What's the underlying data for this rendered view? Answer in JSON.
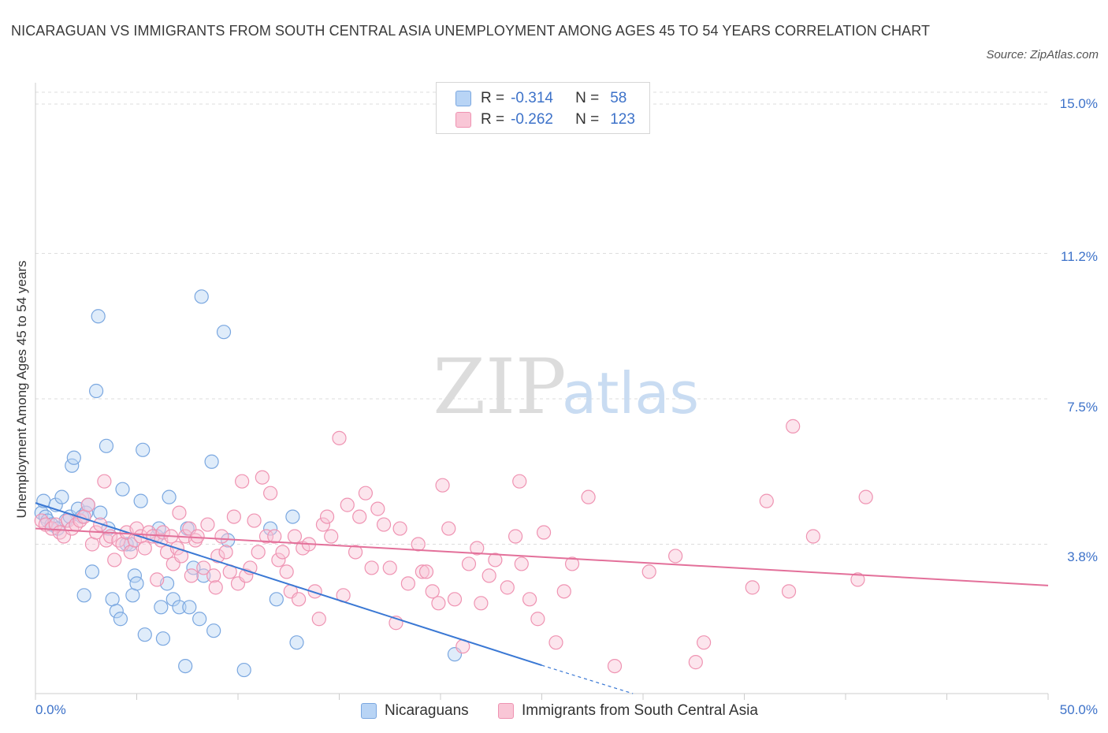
{
  "title": "NICARAGUAN VS IMMIGRANTS FROM SOUTH CENTRAL ASIA UNEMPLOYMENT AMONG AGES 45 TO 54 YEARS CORRELATION CHART",
  "source": "Source: ZipAtlas.com",
  "watermark": {
    "zip": "ZIP",
    "atlas": "atlas"
  },
  "legend": {
    "rows": [
      {
        "r_label": "R =",
        "r_value": "-0.314",
        "n_label": "N =",
        "n_value": "58",
        "color": "#b8d4f5",
        "stroke": "#7aa7e0"
      },
      {
        "r_label": "R =",
        "r_value": "-0.262",
        "n_label": "N =",
        "n_value": "123",
        "color": "#f9c6d6",
        "stroke": "#ef93b2"
      }
    ]
  },
  "chart_data": {
    "type": "scatter",
    "title": "NICARAGUAN VS IMMIGRANTS FROM SOUTH CENTRAL ASIA UNEMPLOYMENT AMONG AGES 45 TO 54 YEARS CORRELATION CHART",
    "xlabel": "",
    "ylabel": "Unemployment Among Ages 45 to 54 years",
    "xlim": [
      0,
      50
    ],
    "ylim": [
      0,
      15.3
    ],
    "x_tick_labels": [
      "0.0%",
      "50.0%"
    ],
    "y_ticks": [
      3.8,
      7.5,
      11.2,
      15.0
    ],
    "y_tick_labels": [
      "3.8%",
      "7.5%",
      "11.2%",
      "15.0%"
    ],
    "grid": true,
    "legend_position": "top-center",
    "series": [
      {
        "name": "Nicaraguans",
        "color": "#7aa7e0",
        "fill": "#b8d4f5",
        "trend": {
          "x0": 0,
          "y0": 4.85,
          "x1": 25,
          "y1": 0.72,
          "dashed_to_x": 29.5,
          "dashed_to_y": 0.0
        },
        "points": [
          [
            0.3,
            4.6
          ],
          [
            0.4,
            4.9
          ],
          [
            0.5,
            4.5
          ],
          [
            0.6,
            4.4
          ],
          [
            0.8,
            4.3
          ],
          [
            1.0,
            4.8
          ],
          [
            1.1,
            4.2
          ],
          [
            1.3,
            5.0
          ],
          [
            1.5,
            4.4
          ],
          [
            1.7,
            4.5
          ],
          [
            1.8,
            5.8
          ],
          [
            1.9,
            6.0
          ],
          [
            2.1,
            4.7
          ],
          [
            2.3,
            4.5
          ],
          [
            2.5,
            4.6
          ],
          [
            2.6,
            4.8
          ],
          [
            2.4,
            2.5
          ],
          [
            2.8,
            3.1
          ],
          [
            3.0,
            7.7
          ],
          [
            3.1,
            9.6
          ],
          [
            3.2,
            4.6
          ],
          [
            3.5,
            6.3
          ],
          [
            3.6,
            4.2
          ],
          [
            3.8,
            2.4
          ],
          [
            4.0,
            2.1
          ],
          [
            4.2,
            1.9
          ],
          [
            4.3,
            5.2
          ],
          [
            4.5,
            3.8
          ],
          [
            4.7,
            3.8
          ],
          [
            4.8,
            2.5
          ],
          [
            4.9,
            3.0
          ],
          [
            5.0,
            2.8
          ],
          [
            5.2,
            4.9
          ],
          [
            5.3,
            6.2
          ],
          [
            5.4,
            1.5
          ],
          [
            6.0,
            4.0
          ],
          [
            6.1,
            4.2
          ],
          [
            6.2,
            2.2
          ],
          [
            6.3,
            1.4
          ],
          [
            6.5,
            2.8
          ],
          [
            6.6,
            5.0
          ],
          [
            6.8,
            2.4
          ],
          [
            7.1,
            2.2
          ],
          [
            7.4,
            0.7
          ],
          [
            7.5,
            4.2
          ],
          [
            7.6,
            2.2
          ],
          [
            7.8,
            3.2
          ],
          [
            8.1,
            1.9
          ],
          [
            8.2,
            10.1
          ],
          [
            8.3,
            3.0
          ],
          [
            8.7,
            5.9
          ],
          [
            8.8,
            1.6
          ],
          [
            9.3,
            9.2
          ],
          [
            9.5,
            3.9
          ],
          [
            10.3,
            0.6
          ],
          [
            11.6,
            4.2
          ],
          [
            11.9,
            2.4
          ],
          [
            12.7,
            4.5
          ],
          [
            12.9,
            1.3
          ],
          [
            20.7,
            1.0
          ]
        ]
      },
      {
        "name": "Immigrants from South Central Asia",
        "color": "#ef93b2",
        "fill": "#f9c6d6",
        "trend": {
          "x0": 0,
          "y0": 4.2,
          "x1": 50,
          "y1": 2.75
        },
        "points": [
          [
            0.3,
            4.4
          ],
          [
            0.5,
            4.3
          ],
          [
            0.8,
            4.2
          ],
          [
            1.0,
            4.3
          ],
          [
            1.2,
            4.1
          ],
          [
            1.4,
            4.0
          ],
          [
            1.6,
            4.4
          ],
          [
            1.8,
            4.2
          ],
          [
            2.0,
            4.3
          ],
          [
            2.2,
            4.4
          ],
          [
            2.4,
            4.5
          ],
          [
            2.6,
            4.8
          ],
          [
            2.8,
            3.8
          ],
          [
            3.0,
            4.1
          ],
          [
            3.2,
            4.3
          ],
          [
            3.4,
            5.4
          ],
          [
            3.5,
            3.9
          ],
          [
            3.7,
            4.0
          ],
          [
            3.9,
            3.4
          ],
          [
            4.1,
            3.9
          ],
          [
            4.3,
            3.8
          ],
          [
            4.5,
            4.1
          ],
          [
            4.7,
            3.6
          ],
          [
            4.9,
            3.9
          ],
          [
            5.0,
            4.2
          ],
          [
            5.2,
            4.0
          ],
          [
            5.4,
            3.7
          ],
          [
            5.6,
            4.1
          ],
          [
            5.8,
            4.0
          ],
          [
            6.0,
            2.9
          ],
          [
            6.2,
            3.9
          ],
          [
            6.3,
            4.1
          ],
          [
            6.5,
            3.6
          ],
          [
            6.7,
            4.0
          ],
          [
            6.8,
            3.3
          ],
          [
            7.0,
            3.7
          ],
          [
            7.1,
            4.6
          ],
          [
            7.2,
            3.5
          ],
          [
            7.4,
            4.0
          ],
          [
            7.6,
            4.2
          ],
          [
            7.7,
            3.0
          ],
          [
            7.9,
            3.9
          ],
          [
            8.0,
            4.0
          ],
          [
            8.3,
            3.2
          ],
          [
            8.5,
            4.3
          ],
          [
            8.8,
            3.0
          ],
          [
            8.9,
            2.7
          ],
          [
            9.0,
            3.5
          ],
          [
            9.2,
            4.0
          ],
          [
            9.4,
            3.6
          ],
          [
            9.6,
            3.1
          ],
          [
            9.8,
            4.5
          ],
          [
            10.0,
            2.8
          ],
          [
            10.2,
            5.4
          ],
          [
            10.4,
            3.0
          ],
          [
            10.6,
            3.2
          ],
          [
            10.8,
            4.4
          ],
          [
            11.0,
            3.6
          ],
          [
            11.2,
            5.5
          ],
          [
            11.4,
            4.0
          ],
          [
            11.6,
            5.1
          ],
          [
            11.8,
            4.0
          ],
          [
            12.0,
            3.4
          ],
          [
            12.2,
            3.6
          ],
          [
            12.4,
            3.1
          ],
          [
            12.6,
            2.6
          ],
          [
            12.8,
            4.0
          ],
          [
            13.0,
            2.4
          ],
          [
            13.2,
            3.7
          ],
          [
            13.5,
            3.8
          ],
          [
            13.8,
            2.6
          ],
          [
            14.0,
            1.9
          ],
          [
            14.2,
            4.3
          ],
          [
            14.4,
            4.5
          ],
          [
            14.6,
            4.0
          ],
          [
            15.0,
            6.5
          ],
          [
            15.2,
            2.5
          ],
          [
            15.4,
            4.8
          ],
          [
            15.8,
            3.6
          ],
          [
            16.0,
            4.5
          ],
          [
            16.3,
            5.1
          ],
          [
            16.6,
            3.2
          ],
          [
            16.9,
            4.7
          ],
          [
            17.2,
            4.3
          ],
          [
            17.5,
            3.2
          ],
          [
            17.8,
            1.8
          ],
          [
            18.0,
            4.2
          ],
          [
            18.4,
            2.8
          ],
          [
            18.9,
            3.8
          ],
          [
            19.1,
            3.1
          ],
          [
            19.3,
            3.1
          ],
          [
            19.6,
            2.6
          ],
          [
            19.9,
            2.3
          ],
          [
            20.1,
            5.3
          ],
          [
            20.4,
            4.2
          ],
          [
            20.7,
            2.4
          ],
          [
            21.1,
            1.2
          ],
          [
            21.4,
            3.3
          ],
          [
            21.8,
            3.7
          ],
          [
            22.0,
            2.3
          ],
          [
            22.4,
            3.0
          ],
          [
            22.7,
            3.4
          ],
          [
            23.3,
            2.7
          ],
          [
            23.7,
            4.0
          ],
          [
            23.9,
            5.4
          ],
          [
            24.0,
            3.3
          ],
          [
            24.4,
            2.4
          ],
          [
            24.8,
            1.9
          ],
          [
            25.1,
            4.1
          ],
          [
            25.7,
            1.3
          ],
          [
            26.1,
            2.6
          ],
          [
            26.5,
            3.3
          ],
          [
            27.3,
            5.0
          ],
          [
            28.6,
            0.7
          ],
          [
            30.3,
            3.1
          ],
          [
            31.6,
            3.5
          ],
          [
            32.6,
            0.8
          ],
          [
            33.0,
            1.3
          ],
          [
            35.4,
            2.7
          ],
          [
            36.1,
            4.9
          ],
          [
            37.2,
            2.6
          ],
          [
            37.4,
            6.8
          ],
          [
            38.4,
            4.0
          ],
          [
            40.6,
            2.9
          ],
          [
            41.0,
            5.0
          ]
        ]
      }
    ]
  }
}
